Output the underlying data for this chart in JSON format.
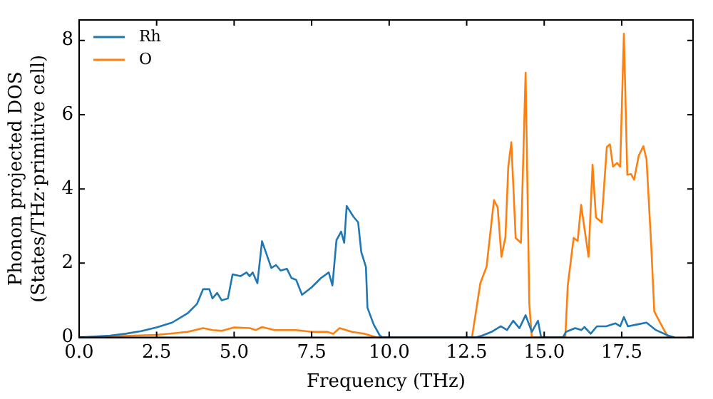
{
  "chart_data": {
    "type": "line",
    "xlabel": "Frequency (THz)",
    "ylabel": "Phonon projected DOS\n(States/THz·primitive cell)",
    "xlim": [
      0,
      19.8
    ],
    "ylim": [
      0,
      8.55
    ],
    "xticks": [
      {
        "value": 0,
        "label": "0.0"
      },
      {
        "value": 2.5,
        "label": "2.5"
      },
      {
        "value": 5,
        "label": "5.0"
      },
      {
        "value": 7.5,
        "label": "7.5"
      },
      {
        "value": 10,
        "label": "10.0"
      },
      {
        "value": 12.5,
        "label": "12.5"
      },
      {
        "value": 15,
        "label": "15.0"
      },
      {
        "value": 17.5,
        "label": "17.5"
      }
    ],
    "yticks": [
      0,
      2,
      4,
      6,
      8
    ],
    "grid": false,
    "legend": "top left",
    "marker": "none",
    "line_style": "solid",
    "series": [
      {
        "name": "Rh",
        "color": "#1f77b4",
        "x": [
          0,
          1,
          1.5,
          2,
          2.5,
          3,
          3.5,
          3.8,
          4.0,
          4.2,
          4.3,
          4.45,
          4.6,
          4.8,
          4.95,
          5.2,
          5.4,
          5.5,
          5.6,
          5.75,
          5.9,
          6.2,
          6.35,
          6.5,
          6.7,
          6.85,
          7.0,
          7.19,
          7.5,
          7.8,
          8.05,
          8.17,
          8.3,
          8.45,
          8.55,
          8.63,
          8.85,
          9.0,
          9.1,
          9.25,
          9.3,
          9.5,
          9.7,
          9.8,
          12.8,
          13.0,
          13.3,
          13.6,
          13.8,
          14.0,
          14.2,
          14.4,
          14.6,
          14.8,
          14.9,
          15.6,
          15.7,
          16.0,
          16.2,
          16.3,
          16.5,
          16.7,
          17.0,
          17.3,
          17.45,
          17.57,
          17.7,
          18.0,
          18.3,
          18.6,
          19.0,
          19.2
        ],
        "values": [
          0,
          0.05,
          0.1,
          0.17,
          0.27,
          0.4,
          0.65,
          0.9,
          1.3,
          1.3,
          1.05,
          1.2,
          1.0,
          1.05,
          1.7,
          1.65,
          1.75,
          1.65,
          1.75,
          1.46,
          2.59,
          1.87,
          1.95,
          1.8,
          1.85,
          1.6,
          1.55,
          1.15,
          1.35,
          1.6,
          1.75,
          1.4,
          2.62,
          2.85,
          2.55,
          3.54,
          3.25,
          3.1,
          2.3,
          1.9,
          0.8,
          0.35,
          0.05,
          0,
          0,
          0.05,
          0.15,
          0.3,
          0.2,
          0.45,
          0.25,
          0.6,
          0.15,
          0.45,
          0,
          0,
          0.15,
          0.25,
          0.2,
          0.28,
          0.1,
          0.3,
          0.3,
          0.38,
          0.3,
          0.55,
          0.3,
          0.35,
          0.4,
          0.2,
          0.05,
          0
        ]
      },
      {
        "name": "O",
        "color": "#ff7f0e",
        "x": [
          0,
          2.5,
          3.5,
          4.0,
          4.3,
          4.6,
          5.0,
          5.5,
          5.7,
          5.9,
          6.3,
          7.0,
          7.5,
          8.0,
          8.2,
          8.4,
          8.8,
          9.2,
          9.6,
          12.67,
          12.94,
          13.14,
          13.38,
          13.5,
          13.62,
          13.75,
          13.84,
          13.94,
          14.08,
          14.25,
          14.4,
          14.52,
          14.6,
          15.68,
          15.76,
          15.95,
          16.08,
          16.19,
          16.43,
          16.56,
          16.67,
          16.85,
          17.02,
          17.12,
          17.22,
          17.35,
          17.45,
          17.57,
          17.68,
          17.8,
          17.9,
          18.05,
          18.2,
          18.3,
          18.45,
          18.55,
          18.8,
          19.0
        ],
        "values": [
          0,
          0.07,
          0.15,
          0.25,
          0.2,
          0.18,
          0.27,
          0.25,
          0.2,
          0.28,
          0.2,
          0.2,
          0.15,
          0.15,
          0.1,
          0.25,
          0.15,
          0.1,
          0,
          0,
          1.46,
          1.9,
          3.7,
          3.5,
          2.17,
          2.7,
          4.58,
          5.26,
          2.68,
          2.55,
          7.13,
          0.9,
          0,
          0,
          1.4,
          2.68,
          2.6,
          3.57,
          2.17,
          4.65,
          3.23,
          3.1,
          5.13,
          5.2,
          4.6,
          4.7,
          4.6,
          8.18,
          4.38,
          4.4,
          4.25,
          4.9,
          5.15,
          4.8,
          2.5,
          0.7,
          0.3,
          0
        ]
      }
    ]
  }
}
